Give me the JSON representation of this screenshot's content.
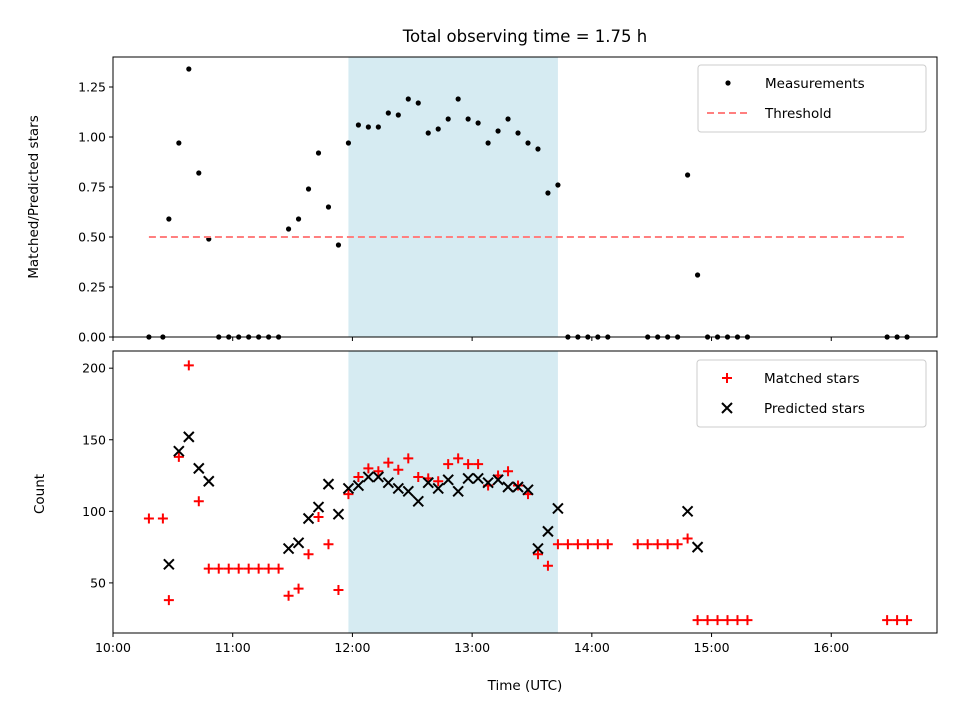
{
  "chart_data": [
    {
      "type": "scatter",
      "title": "Total observing time = 1.75 h",
      "xlabel": "",
      "ylabel": "Matched/Predicted stars",
      "xlim": [
        "10:00",
        "16:53"
      ],
      "ylim": [
        0,
        1.4
      ],
      "yticks": [
        "0.00",
        "0.25",
        "0.50",
        "0.75",
        "1.00",
        "1.25"
      ],
      "shaded_region": {
        "x": [
          "11:58",
          "13:43"
        ],
        "color": "#add8e6"
      },
      "legend": {
        "position": "top-right",
        "entries": [
          "Measurements",
          "Threshold"
        ]
      },
      "series": [
        {
          "name": "Measurements",
          "marker": "dot",
          "color": "#000000",
          "points": [
            [
              "10:18",
              0.0
            ],
            [
              "10:25",
              0.0
            ],
            [
              "10:28",
              0.59
            ],
            [
              "10:33",
              0.97
            ],
            [
              "10:38",
              1.34
            ],
            [
              "10:43",
              0.82
            ],
            [
              "10:48",
              0.49
            ],
            [
              "10:53",
              0.0
            ],
            [
              "10:58",
              0.0
            ],
            [
              "11:03",
              0.0
            ],
            [
              "11:08",
              0.0
            ],
            [
              "11:13",
              0.0
            ],
            [
              "11:18",
              0.0
            ],
            [
              "11:23",
              0.0
            ],
            [
              "11:28",
              0.54
            ],
            [
              "11:33",
              0.59
            ],
            [
              "11:38",
              0.74
            ],
            [
              "11:43",
              0.92
            ],
            [
              "11:48",
              0.65
            ],
            [
              "11:53",
              0.46
            ],
            [
              "11:58",
              0.97
            ],
            [
              "12:03",
              1.06
            ],
            [
              "12:08",
              1.05
            ],
            [
              "12:13",
              1.05
            ],
            [
              "12:18",
              1.12
            ],
            [
              "12:23",
              1.11
            ],
            [
              "12:28",
              1.19
            ],
            [
              "12:33",
              1.17
            ],
            [
              "12:38",
              1.02
            ],
            [
              "12:43",
              1.04
            ],
            [
              "12:48",
              1.09
            ],
            [
              "12:53",
              1.19
            ],
            [
              "12:58",
              1.09
            ],
            [
              "13:03",
              1.07
            ],
            [
              "13:08",
              0.97
            ],
            [
              "13:13",
              1.03
            ],
            [
              "13:18",
              1.09
            ],
            [
              "13:23",
              1.02
            ],
            [
              "13:28",
              0.97
            ],
            [
              "13:33",
              0.94
            ],
            [
              "13:38",
              0.72
            ],
            [
              "13:43",
              0.76
            ],
            [
              "13:48",
              0.0
            ],
            [
              "13:53",
              0.0
            ],
            [
              "13:58",
              0.0
            ],
            [
              "14:03",
              0.0
            ],
            [
              "14:08",
              0.0
            ],
            [
              "14:28",
              0.0
            ],
            [
              "14:33",
              0.0
            ],
            [
              "14:38",
              0.0
            ],
            [
              "14:43",
              0.0
            ],
            [
              "14:48",
              0.81
            ],
            [
              "14:53",
              0.31
            ],
            [
              "14:58",
              0.0
            ],
            [
              "15:03",
              0.0
            ],
            [
              "15:08",
              0.0
            ],
            [
              "15:13",
              0.0
            ],
            [
              "15:18",
              0.0
            ],
            [
              "16:28",
              0.0
            ],
            [
              "16:33",
              0.0
            ],
            [
              "16:38",
              0.0
            ]
          ]
        },
        {
          "name": "Threshold",
          "marker": "dashed-line",
          "color": "#ff7f7f",
          "points": [
            [
              "10:18",
              0.5
            ],
            [
              "16:38",
              0.5
            ]
          ]
        }
      ]
    },
    {
      "type": "scatter",
      "title": "",
      "xlabel": "Time (UTC)",
      "ylabel": "Count",
      "xlim": [
        "10:00",
        "16:53"
      ],
      "ylim": [
        15,
        212
      ],
      "yticks": [
        "50",
        "100",
        "150",
        "200"
      ],
      "xticks": [
        "10:00",
        "11:00",
        "12:00",
        "13:00",
        "14:00",
        "15:00",
        "16:00"
      ],
      "shaded_region": {
        "x": [
          "11:58",
          "13:43"
        ],
        "color": "#add8e6"
      },
      "legend": {
        "position": "top-right",
        "entries": [
          "Matched stars",
          "Predicted stars"
        ]
      },
      "series": [
        {
          "name": "Matched stars",
          "marker": "plus",
          "color": "#ff0000",
          "points": [
            [
              "10:18",
              95
            ],
            [
              "10:25",
              95
            ],
            [
              "10:28",
              38
            ],
            [
              "10:33",
              138
            ],
            [
              "10:38",
              202
            ],
            [
              "10:43",
              107
            ],
            [
              "10:48",
              60
            ],
            [
              "10:53",
              60
            ],
            [
              "10:58",
              60
            ],
            [
              "11:03",
              60
            ],
            [
              "11:08",
              60
            ],
            [
              "11:13",
              60
            ],
            [
              "11:18",
              60
            ],
            [
              "11:23",
              60
            ],
            [
              "11:28",
              41
            ],
            [
              "11:33",
              46
            ],
            [
              "11:38",
              70
            ],
            [
              "11:43",
              96
            ],
            [
              "11:48",
              77
            ],
            [
              "11:53",
              45
            ],
            [
              "11:58",
              112
            ],
            [
              "12:03",
              124
            ],
            [
              "12:08",
              130
            ],
            [
              "12:13",
              128
            ],
            [
              "12:18",
              134
            ],
            [
              "12:23",
              129
            ],
            [
              "12:28",
              137
            ],
            [
              "12:33",
              124
            ],
            [
              "12:38",
              123
            ],
            [
              "12:43",
              121
            ],
            [
              "12:48",
              133
            ],
            [
              "12:53",
              137
            ],
            [
              "12:58",
              133
            ],
            [
              "13:03",
              133
            ],
            [
              "13:08",
              118
            ],
            [
              "13:13",
              125
            ],
            [
              "13:18",
              128
            ],
            [
              "13:23",
              118
            ],
            [
              "13:28",
              112
            ],
            [
              "13:33",
              70
            ],
            [
              "13:38",
              62
            ],
            [
              "13:43",
              77
            ],
            [
              "13:48",
              77
            ],
            [
              "13:53",
              77
            ],
            [
              "13:58",
              77
            ],
            [
              "14:03",
              77
            ],
            [
              "14:08",
              77
            ],
            [
              "14:23",
              77
            ],
            [
              "14:28",
              77
            ],
            [
              "14:33",
              77
            ],
            [
              "14:38",
              77
            ],
            [
              "14:43",
              77
            ],
            [
              "14:48",
              81
            ],
            [
              "14:53",
              24
            ],
            [
              "14:58",
              24
            ],
            [
              "15:03",
              24
            ],
            [
              "15:08",
              24
            ],
            [
              "15:13",
              24
            ],
            [
              "15:18",
              24
            ],
            [
              "16:28",
              24
            ],
            [
              "16:33",
              24
            ],
            [
              "16:38",
              24
            ]
          ]
        },
        {
          "name": "Predicted stars",
          "marker": "x",
          "color": "#000000",
          "points": [
            [
              "10:28",
              63
            ],
            [
              "10:33",
              142
            ],
            [
              "10:38",
              152
            ],
            [
              "10:43",
              130
            ],
            [
              "10:48",
              121
            ],
            [
              "11:28",
              74
            ],
            [
              "11:33",
              78
            ],
            [
              "11:38",
              95
            ],
            [
              "11:43",
              103
            ],
            [
              "11:48",
              119
            ],
            [
              "11:53",
              98
            ],
            [
              "11:58",
              116
            ],
            [
              "12:03",
              118
            ],
            [
              "12:08",
              124
            ],
            [
              "12:13",
              124
            ],
            [
              "12:18",
              120
            ],
            [
              "12:23",
              116
            ],
            [
              "12:28",
              114
            ],
            [
              "12:33",
              107
            ],
            [
              "12:38",
              120
            ],
            [
              "12:43",
              116
            ],
            [
              "12:48",
              122
            ],
            [
              "12:53",
              114
            ],
            [
              "12:58",
              123
            ],
            [
              "13:03",
              123
            ],
            [
              "13:08",
              120
            ],
            [
              "13:13",
              122
            ],
            [
              "13:18",
              117
            ],
            [
              "13:23",
              117
            ],
            [
              "13:28",
              115
            ],
            [
              "13:33",
              74
            ],
            [
              "13:38",
              86
            ],
            [
              "13:43",
              102
            ],
            [
              "14:48",
              100
            ],
            [
              "14:53",
              75
            ]
          ]
        }
      ]
    }
  ]
}
